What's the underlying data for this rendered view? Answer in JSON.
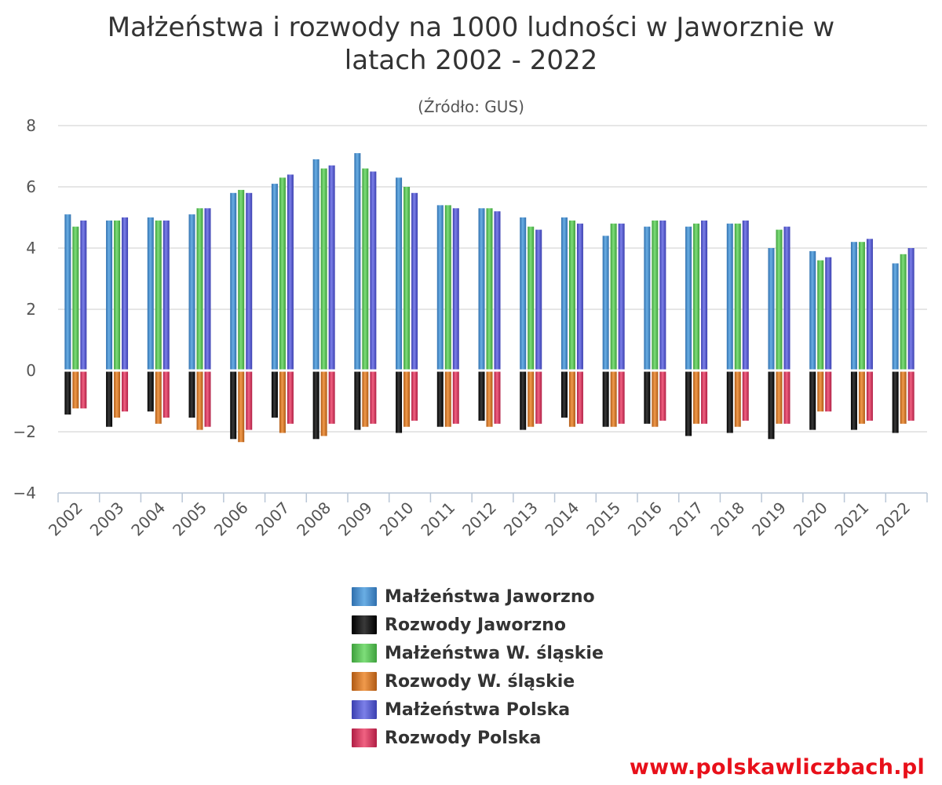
{
  "title_line1": "Małżeństwa i rozwody na 1000 ludności w Jaworznie w",
  "title_line2": "latach 2002 - 2022",
  "subtitle": "(Źródło: GUS)",
  "footer": "www.polskawliczbach.pl",
  "chart_data": {
    "type": "bar",
    "title": "Małżeństwa i rozwody na 1000 ludności w Jaworznie w latach 2002 - 2022",
    "subtitle": "(Źródło: GUS)",
    "xlabel": "",
    "ylabel": "",
    "ylim": [
      -4,
      8
    ],
    "yticks": [
      8,
      6,
      4,
      2,
      0,
      -2,
      -4
    ],
    "ytick_labels": [
      "8",
      "6",
      "4",
      "2",
      "0",
      "−2",
      "−4"
    ],
    "grid": true,
    "legend_position": "bottom-center",
    "categories": [
      "2002",
      "2003",
      "2004",
      "2005",
      "2006",
      "2007",
      "2008",
      "2009",
      "2010",
      "2011",
      "2012",
      "2013",
      "2014",
      "2015",
      "2016",
      "2017",
      "2018",
      "2019",
      "2020",
      "2021",
      "2022"
    ],
    "series": [
      {
        "name": "Małżeństwa Jaworzno",
        "color": "#4a8fcf",
        "stack": "Jaworzno",
        "values": [
          5.1,
          4.9,
          5.0,
          5.1,
          5.8,
          6.1,
          6.9,
          7.1,
          6.3,
          5.4,
          5.3,
          5.0,
          5.0,
          4.4,
          4.7,
          4.7,
          4.8,
          4.0,
          3.9,
          4.2,
          3.5
        ]
      },
      {
        "name": "Rozwody Jaworzno",
        "color": "#111111",
        "stack": "Jaworzno",
        "values": [
          -1.4,
          -1.8,
          -1.3,
          -1.5,
          -2.2,
          -1.5,
          -2.2,
          -1.9,
          -2.0,
          -1.8,
          -1.6,
          -1.9,
          -1.5,
          -1.8,
          -1.7,
          -2.1,
          -2.0,
          -2.2,
          -1.9,
          -1.9,
          -2.0
        ]
      },
      {
        "name": "Małżeństwa W. śląskie",
        "color": "#5cc45a",
        "stack": "Slaskie",
        "values": [
          4.7,
          4.9,
          4.9,
          5.3,
          5.9,
          6.3,
          6.6,
          6.6,
          6.0,
          5.4,
          5.3,
          4.7,
          4.9,
          4.8,
          4.9,
          4.8,
          4.8,
          4.6,
          3.6,
          4.2,
          3.8
        ]
      },
      {
        "name": "Rozwody W. śląskie",
        "color": "#d8782c",
        "stack": "Slaskie",
        "values": [
          -1.2,
          -1.5,
          -1.7,
          -1.9,
          -2.3,
          -2.0,
          -2.1,
          -1.8,
          -1.8,
          -1.8,
          -1.8,
          -1.8,
          -1.8,
          -1.8,
          -1.8,
          -1.7,
          -1.8,
          -1.7,
          -1.3,
          -1.7,
          -1.7
        ]
      },
      {
        "name": "Małżeństwa Polska",
        "color": "#5a5fcf",
        "stack": "Polska",
        "values": [
          4.9,
          5.0,
          4.9,
          5.3,
          5.8,
          6.4,
          6.7,
          6.5,
          5.8,
          5.3,
          5.2,
          4.6,
          4.8,
          4.8,
          4.9,
          4.9,
          4.9,
          4.7,
          3.7,
          4.3,
          4.0
        ]
      },
      {
        "name": "Rozwody Polska",
        "color": "#d83a5e",
        "stack": "Polska",
        "values": [
          -1.2,
          -1.3,
          -1.5,
          -1.8,
          -1.9,
          -1.7,
          -1.7,
          -1.7,
          -1.6,
          -1.7,
          -1.7,
          -1.7,
          -1.7,
          -1.7,
          -1.6,
          -1.7,
          -1.6,
          -1.7,
          -1.3,
          -1.6,
          -1.6
        ]
      }
    ]
  }
}
